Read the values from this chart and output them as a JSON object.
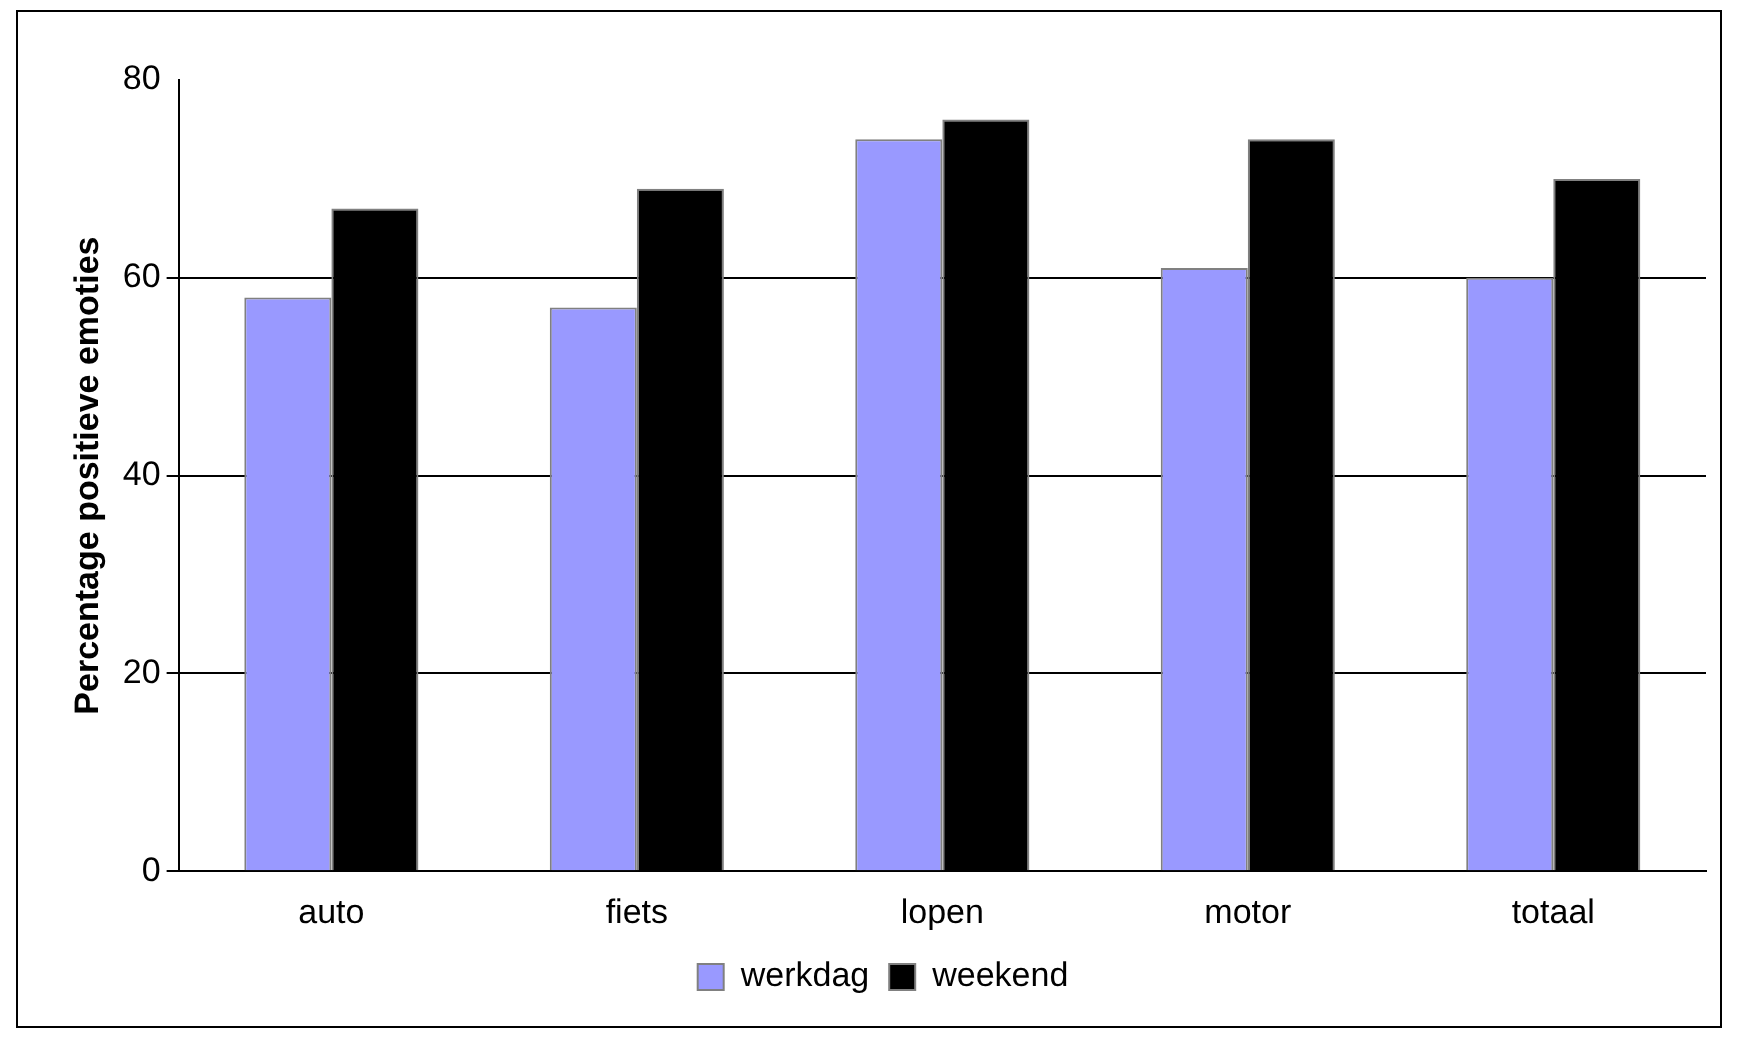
{
  "chart_data": {
    "type": "bar",
    "ylabel": "Percentage positieve emoties",
    "categories": [
      "auto",
      "fiets",
      "lopen",
      "motor",
      "totaal"
    ],
    "series": [
      {
        "name": "werkdag",
        "color": "#9999ff",
        "values": [
          58,
          57,
          74,
          61,
          60
        ]
      },
      {
        "name": "weekend",
        "color": "#000000",
        "values": [
          67,
          69,
          76,
          74,
          70
        ]
      }
    ],
    "ylim": [
      0,
      80
    ],
    "yticks": [
      0,
      20,
      40,
      60,
      80
    ],
    "grid": "y",
    "legend": "bottom"
  }
}
